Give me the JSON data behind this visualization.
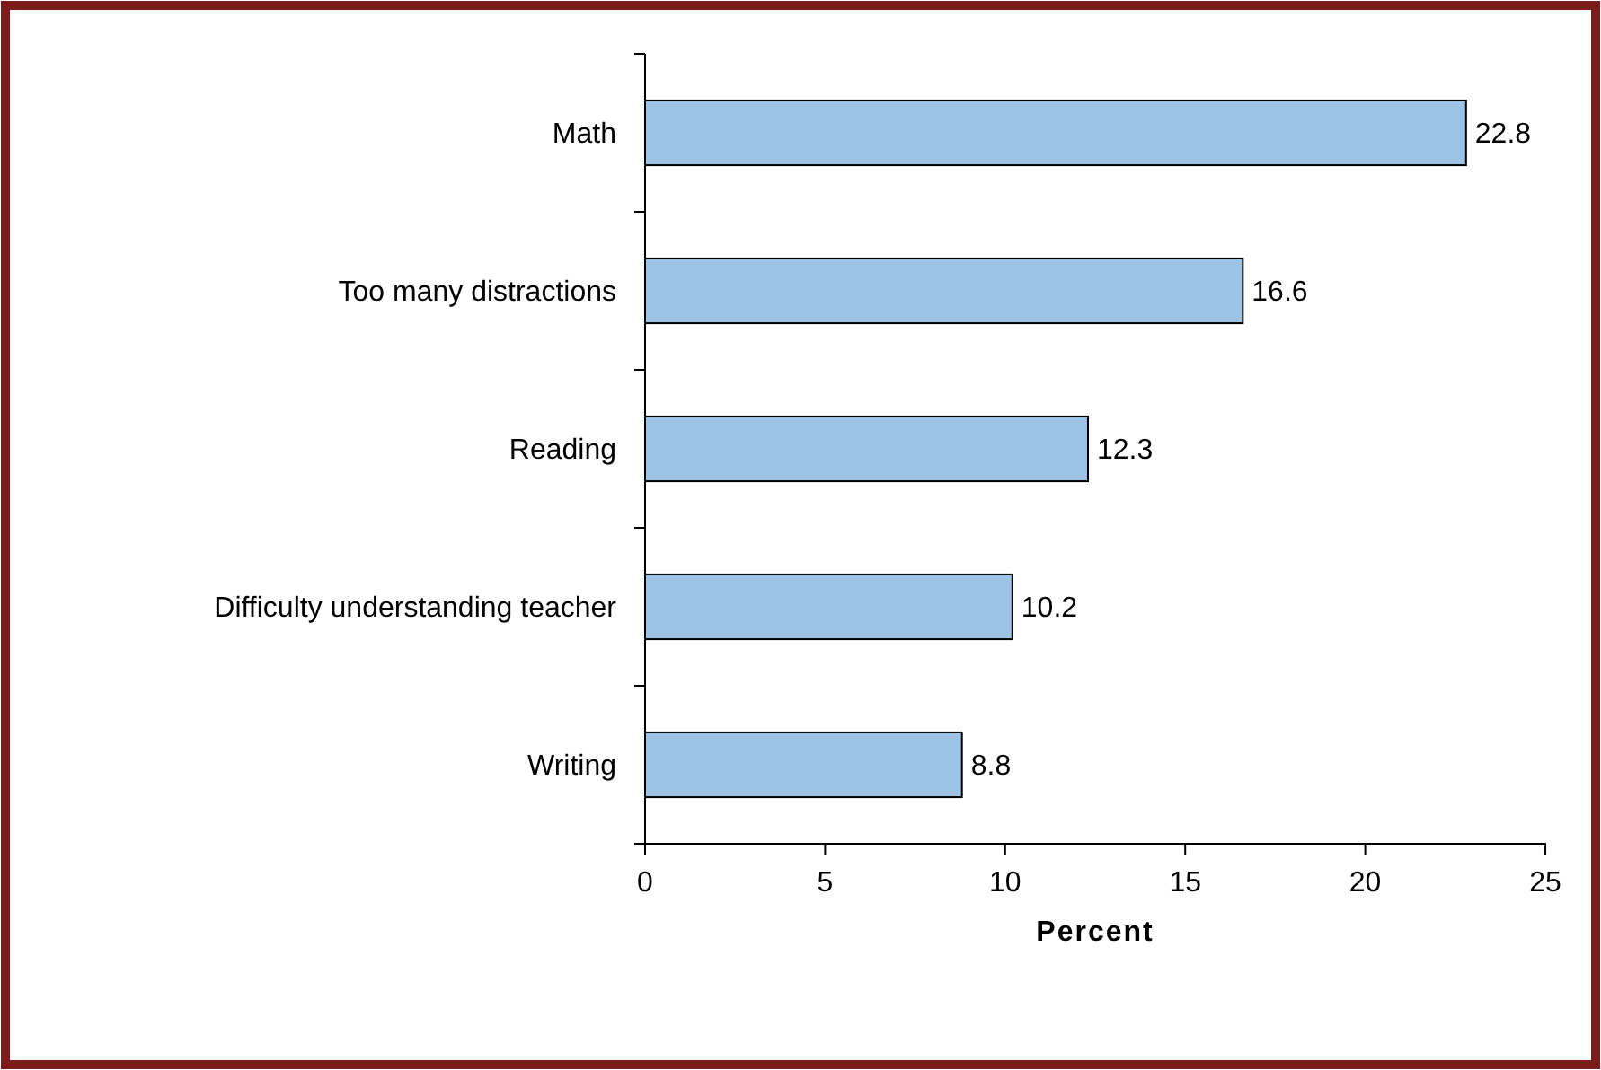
{
  "chart_data": {
    "type": "bar",
    "orientation": "horizontal",
    "xlabel": "Percent",
    "categories": [
      "Math",
      "Too many distractions",
      "Reading",
      "Difficulty understanding teacher",
      "Writing"
    ],
    "values": [
      22.8,
      16.6,
      12.3,
      10.2,
      8.8
    ],
    "color": "#9dc3e6",
    "xlim": [
      0,
      25
    ],
    "xticks": [
      0,
      5,
      10,
      15,
      20,
      25
    ],
    "data_labels": true,
    "grid": false
  }
}
